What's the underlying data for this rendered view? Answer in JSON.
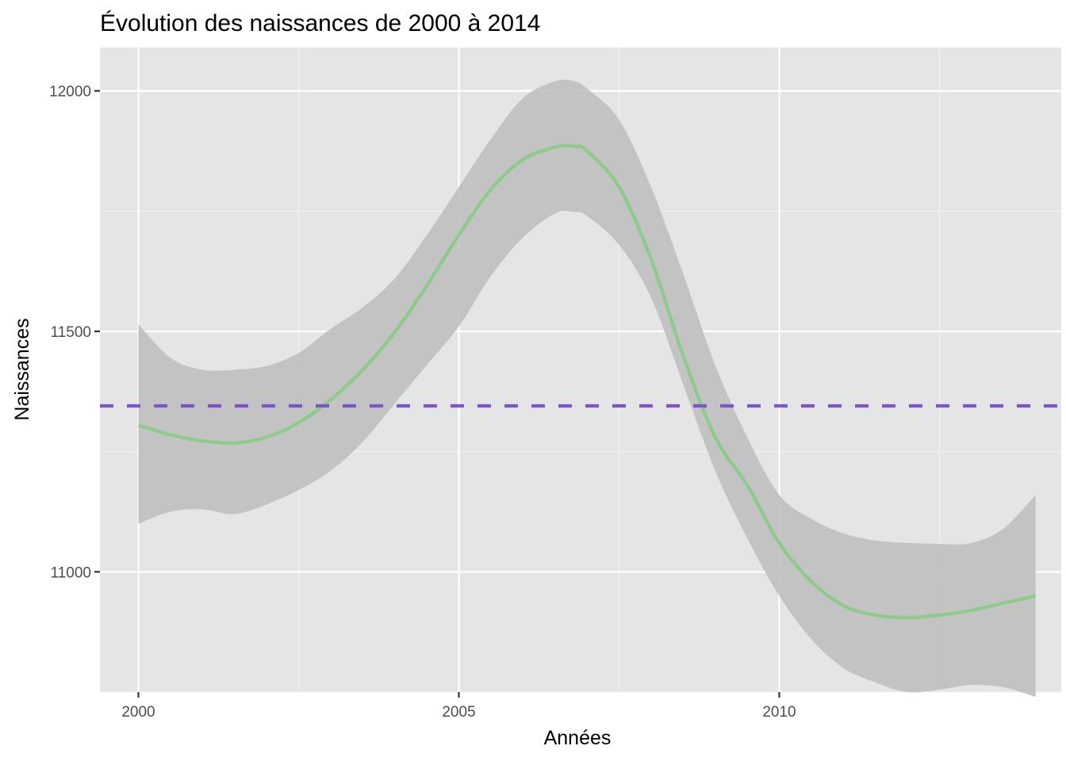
{
  "chart_data": {
    "type": "line",
    "title": "Évolution des naissances de 2000 à 2014",
    "xlabel": "Années",
    "ylabel": "Naissances",
    "xlim": [
      1999.4,
      2014.4
    ],
    "ylim": [
      10750,
      12090
    ],
    "x_ticks": [
      {
        "value": 2000,
        "label": "2000"
      },
      {
        "value": 2005,
        "label": "2005"
      },
      {
        "value": 2010,
        "label": "2010"
      }
    ],
    "x_minor_ticks": [
      2002.5,
      2007.5,
      2012.5
    ],
    "y_ticks": [
      {
        "value": 11000,
        "label": "11000"
      },
      {
        "value": 11500,
        "label": "11500"
      },
      {
        "value": 12000,
        "label": "12000"
      }
    ],
    "y_minor_ticks": [
      11250,
      11750,
      10750
    ],
    "grid": true,
    "legend": "none",
    "series": [
      {
        "kind": "smooth",
        "color": "#8ccb8a",
        "x": [
          2000,
          2000.5,
          2001,
          2001.5,
          2002,
          2002.5,
          2003,
          2003.5,
          2004,
          2004.5,
          2005,
          2005.5,
          2006,
          2006.5,
          2006.8,
          2007,
          2007.5,
          2008,
          2008.5,
          2009,
          2009.5,
          2010,
          2010.5,
          2011,
          2011.5,
          2012,
          2012.5,
          2013,
          2013.5,
          2014
        ],
        "y": [
          11305,
          11285,
          11272,
          11268,
          11280,
          11310,
          11358,
          11420,
          11498,
          11595,
          11700,
          11795,
          11857,
          11883,
          11885,
          11875,
          11800,
          11650,
          11450,
          11280,
          11180,
          11060,
          10980,
          10930,
          10910,
          10905,
          10910,
          10920,
          10935,
          10950
        ]
      },
      {
        "kind": "band",
        "color": "#bebebe",
        "x": [
          2000,
          2000.5,
          2001,
          2001.5,
          2002,
          2002.5,
          2003,
          2003.5,
          2004,
          2004.5,
          2005,
          2005.5,
          2006,
          2006.5,
          2006.8,
          2007,
          2007.5,
          2008,
          2008.5,
          2009,
          2009.5,
          2010,
          2010.5,
          2011,
          2011.5,
          2012,
          2012.5,
          2013,
          2013.5,
          2014
        ],
        "upper": [
          11515,
          11445,
          11420,
          11420,
          11428,
          11455,
          11505,
          11550,
          11610,
          11700,
          11800,
          11900,
          11985,
          12020,
          12020,
          12005,
          11940,
          11800,
          11620,
          11430,
          11280,
          11160,
          11110,
          11080,
          11065,
          11060,
          11058,
          11060,
          11090,
          11160
        ],
        "lower": [
          11100,
          11125,
          11130,
          11120,
          11140,
          11170,
          11210,
          11270,
          11350,
          11430,
          11510,
          11615,
          11695,
          11745,
          11748,
          11740,
          11680,
          11570,
          11390,
          11210,
          11070,
          10950,
          10860,
          10800,
          10770,
          10750,
          10755,
          10765,
          10760,
          10740
        ]
      }
    ],
    "hline": {
      "y": 11345,
      "color": "#7d55c7",
      "style": "dashed"
    }
  }
}
